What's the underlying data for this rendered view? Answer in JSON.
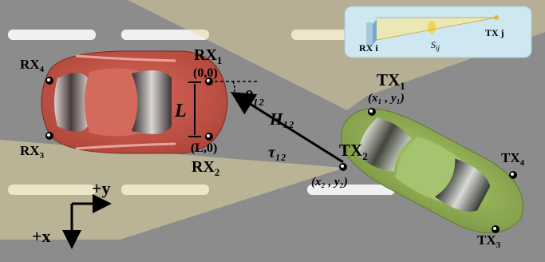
{
  "receivers": {
    "rx1": {
      "name": "RX",
      "sub": "1",
      "coord": "(0,0)"
    },
    "rx2": {
      "name": "RX",
      "sub": "2",
      "coord": "(L,0)"
    },
    "rx3": {
      "name": "RX",
      "sub": "3"
    },
    "rx4": {
      "name": "RX",
      "sub": "4"
    }
  },
  "transmitters": {
    "tx1": {
      "name": "TX",
      "sub": "1",
      "coord": "(x₁ , y₁)"
    },
    "tx2": {
      "name": "TX",
      "sub": "2",
      "coord": "(x₂ , y₂)"
    },
    "tx3": {
      "name": "TX",
      "sub": "3"
    },
    "tx4": {
      "name": "TX",
      "sub": "4"
    }
  },
  "labels": {
    "L": "L",
    "theta": "θ₁₂",
    "H": "H₁₂",
    "tau": "τ₁₂"
  },
  "axes": {
    "y": "+y",
    "x": "+x"
  },
  "inset": {
    "rx": "RX i",
    "sij": "S",
    "sij_sub": "ij",
    "tx": "TX j"
  },
  "colors": {
    "road": "#8a8a8a",
    "lane_marking": "#f2f2f2",
    "rx_car": "#c4574a",
    "tx_car": "#98b85a",
    "beam": "#e6d49a",
    "inset_bg": "#cfe8f2"
  }
}
